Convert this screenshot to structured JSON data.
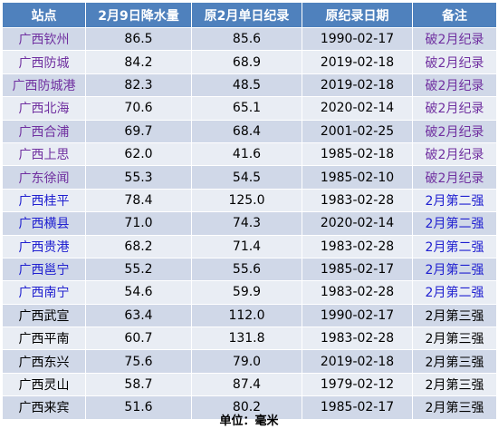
{
  "headers": [
    "站点",
    "2月9日降水量",
    "原2月单日纪录",
    "原纪录日期",
    "备注"
  ],
  "colors": {
    "header_bg": "#4f81bd",
    "row_odd": "#d0d8e8",
    "row_even": "#e9edf4",
    "purple": "#7030a0",
    "blue": "#2020d0",
    "black": "#000000"
  },
  "rows": [
    {
      "station": "广西钦州",
      "rain": "86.5",
      "record": "85.6",
      "date": "1990-02-17",
      "note": "破2月纪录",
      "tone": "purple"
    },
    {
      "station": "广西防城",
      "rain": "84.2",
      "record": "68.9",
      "date": "2019-02-18",
      "note": "破2月纪录",
      "tone": "purple"
    },
    {
      "station": "广西防城港",
      "rain": "82.3",
      "record": "48.5",
      "date": "2019-02-18",
      "note": "破2月纪录",
      "tone": "purple"
    },
    {
      "station": "广西北海",
      "rain": "70.6",
      "record": "65.1",
      "date": "2020-02-14",
      "note": "破2月纪录",
      "tone": "purple"
    },
    {
      "station": "广西合浦",
      "rain": "69.7",
      "record": "68.4",
      "date": "2001-02-25",
      "note": "破2月纪录",
      "tone": "purple"
    },
    {
      "station": "广西上思",
      "rain": "62.0",
      "record": "41.6",
      "date": "1985-02-18",
      "note": "破2月纪录",
      "tone": "purple"
    },
    {
      "station": "广东徐闻",
      "rain": "55.3",
      "record": "54.5",
      "date": "1985-02-10",
      "note": "破2月纪录",
      "tone": "purple"
    },
    {
      "station": "广西桂平",
      "rain": "78.4",
      "record": "125.0",
      "date": "1983-02-28",
      "note": "2月第二强",
      "tone": "blue"
    },
    {
      "station": "广西横县",
      "rain": "71.0",
      "record": "74.3",
      "date": "2020-02-14",
      "note": "2月第二强",
      "tone": "blue"
    },
    {
      "station": "广西贵港",
      "rain": "68.2",
      "record": "71.4",
      "date": "1983-02-28",
      "note": "2月第二强",
      "tone": "blue"
    },
    {
      "station": "广西邕宁",
      "rain": "55.2",
      "record": "55.6",
      "date": "1985-02-17",
      "note": "2月第二强",
      "tone": "blue"
    },
    {
      "station": "广西南宁",
      "rain": "54.6",
      "record": "59.9",
      "date": "1983-02-28",
      "note": "2月第二强",
      "tone": "blue"
    },
    {
      "station": "广西武宣",
      "rain": "63.4",
      "record": "112.0",
      "date": "1990-02-17",
      "note": "2月第三强",
      "tone": "black"
    },
    {
      "station": "广西平南",
      "rain": "60.7",
      "record": "131.8",
      "date": "1983-02-28",
      "note": "2月第三强",
      "tone": "black"
    },
    {
      "station": "广西东兴",
      "rain": "75.6",
      "record": "79.0",
      "date": "2019-02-18",
      "note": "2月第三强",
      "tone": "black"
    },
    {
      "station": "广西灵山",
      "rain": "58.7",
      "record": "87.4",
      "date": "1979-02-12",
      "note": "2月第三强",
      "tone": "black"
    },
    {
      "station": "广西来宾",
      "rain": "51.6",
      "record": "80.2",
      "date": "1985-02-17",
      "note": "2月第三强",
      "tone": "black"
    }
  ],
  "footer": {
    "unit": "单位：毫米"
  }
}
